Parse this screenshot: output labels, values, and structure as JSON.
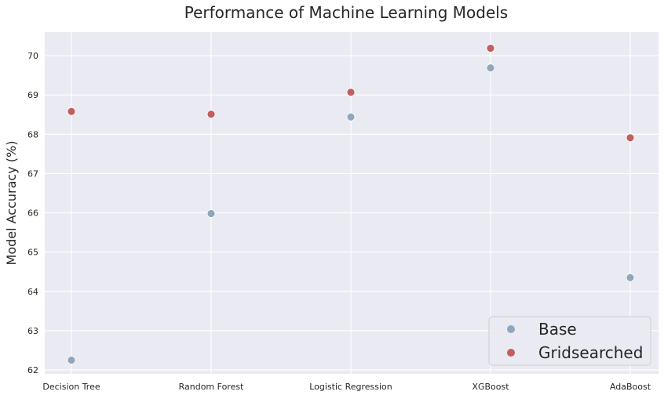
{
  "chart_data": {
    "type": "scatter",
    "title": "Performance of Machine Learning Models",
    "xlabel": "",
    "ylabel": "Model Accuracy (%)",
    "categories": [
      "Decision Tree",
      "Random Forest",
      "Logistic Regression",
      "XGBoost",
      "AdaBoost"
    ],
    "ylim": [
      61.9,
      70.6
    ],
    "yticks": [
      62,
      63,
      64,
      65,
      66,
      67,
      68,
      69,
      70
    ],
    "grid": true,
    "legend_position": "bottom-right",
    "series": [
      {
        "name": "Base",
        "color": "#8fa6bb",
        "values": [
          62.25,
          65.98,
          68.44,
          69.69,
          64.35
        ]
      },
      {
        "name": "Gridsearched",
        "color": "#c45e5e",
        "values": [
          68.58,
          68.51,
          69.07,
          70.19,
          67.91
        ]
      }
    ]
  }
}
